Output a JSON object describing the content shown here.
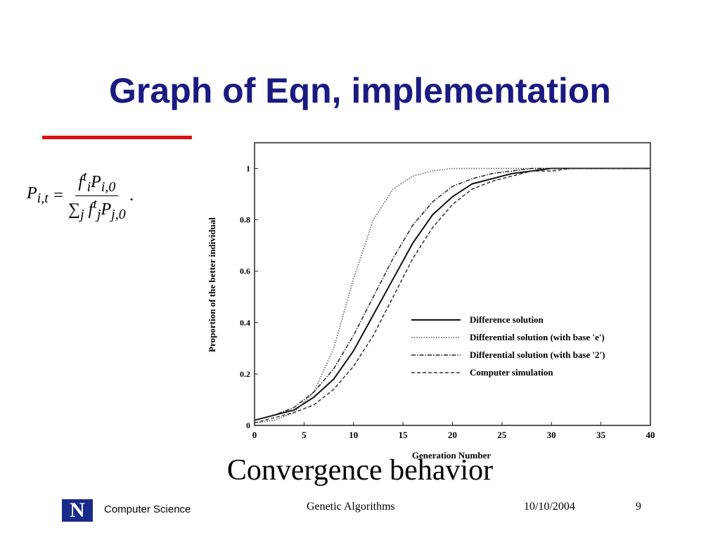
{
  "slide": {
    "title": "Graph of Eqn, implementation",
    "equation": {
      "lhs": "P",
      "lhs_sub": "i,t",
      "equals": "=",
      "num_f": "f",
      "num_f_sup": "t",
      "num_f_sub": "i",
      "num_p": "P",
      "num_p_sub": "i,0",
      "den_sum": "∑",
      "den_sum_sub": "j",
      "den_f": "f",
      "den_f_sup": "t",
      "den_f_sub": "j",
      "den_p": "P",
      "den_p_sub": "j,0",
      "end": "."
    },
    "caption": "Convergence behavior",
    "footer": {
      "logo": "N",
      "org": "Computer Science",
      "topic": "Genetic Algorithms",
      "date": "10/10/2004",
      "page": "9"
    }
  },
  "chart_data": {
    "type": "line",
    "xlabel": "Generation Number",
    "ylabel": "Proportion of the better individual",
    "x": [
      0,
      2,
      4,
      6,
      8,
      10,
      12,
      14,
      16,
      18,
      20,
      22,
      24,
      26,
      28,
      30,
      32,
      34,
      36,
      38,
      40
    ],
    "series": [
      {
        "name": "Difference solution",
        "color": "#111111",
        "dash": "solid",
        "values": [
          0.02,
          0.04,
          0.06,
          0.11,
          0.18,
          0.29,
          0.43,
          0.57,
          0.71,
          0.82,
          0.89,
          0.94,
          0.96,
          0.98,
          0.99,
          1,
          1,
          1,
          1,
          1,
          1
        ]
      },
      {
        "name": "Differential solution (with base 'e')",
        "color": "#555555",
        "dash": "dotted",
        "values": [
          0.01,
          0.02,
          0.05,
          0.13,
          0.3,
          0.57,
          0.8,
          0.92,
          0.97,
          0.99,
          1,
          1,
          1,
          1,
          1,
          1,
          1,
          1,
          1,
          1,
          1
        ]
      },
      {
        "name": "Differential solution (with base '2')",
        "color": "#222222",
        "dash": "dashdot",
        "values": [
          0.02,
          0.04,
          0.07,
          0.13,
          0.22,
          0.35,
          0.5,
          0.65,
          0.78,
          0.87,
          0.93,
          0.96,
          0.98,
          0.99,
          1,
          1,
          1,
          1,
          1,
          1,
          1
        ]
      },
      {
        "name": "Computer simulation",
        "color": "#333333",
        "dash": "dashed",
        "values": [
          0.01,
          0.03,
          0.05,
          0.08,
          0.14,
          0.23,
          0.35,
          0.5,
          0.65,
          0.77,
          0.86,
          0.92,
          0.95,
          0.97,
          0.99,
          0.99,
          1,
          1,
          1,
          1,
          1
        ]
      }
    ],
    "xlim": [
      0,
      40
    ],
    "xticks": [
      0,
      5,
      10,
      15,
      20,
      25,
      30,
      35,
      40
    ],
    "ylim": [
      0,
      1.1
    ],
    "yticks": [
      0,
      0.2,
      0.4,
      0.6,
      0.8,
      1
    ],
    "grid": false,
    "legend": "lower-right"
  }
}
